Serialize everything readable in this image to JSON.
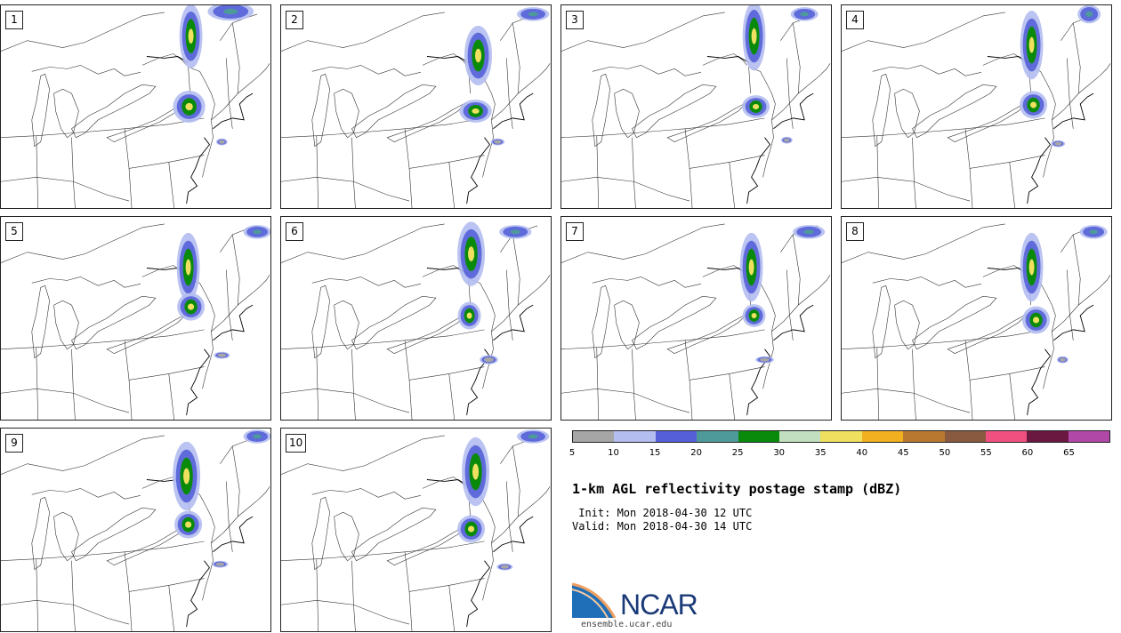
{
  "panels": [
    {
      "label": "1"
    },
    {
      "label": "2"
    },
    {
      "label": "3"
    },
    {
      "label": "4"
    },
    {
      "label": "5"
    },
    {
      "label": "6"
    },
    {
      "label": "7"
    },
    {
      "label": "8"
    },
    {
      "label": "9"
    },
    {
      "label": "10"
    }
  ],
  "colorbar": {
    "colors": [
      "#a6a6a6",
      "#b3bdf0",
      "#5560d8",
      "#4e9a9a",
      "#0a8a0a",
      "#c2dfc0",
      "#f0e060",
      "#f0b020",
      "#b87830",
      "#8a5a40",
      "#f05080",
      "#6a1840",
      "#b048a8"
    ],
    "ticks": [
      "5",
      "10",
      "15",
      "20",
      "25",
      "30",
      "35",
      "40",
      "45",
      "50",
      "55",
      "60",
      "65"
    ]
  },
  "title": "1-km AGL reflectivity postage stamp (dBZ)",
  "init_line": " Init: Mon 2018-04-30 12 UTC",
  "valid_line": "Valid: Mon 2018-04-30 14 UTC",
  "logo": {
    "text": "NCAR",
    "icon": "ncar-logo-icon",
    "url": "ensemble.ucar.edu"
  }
}
